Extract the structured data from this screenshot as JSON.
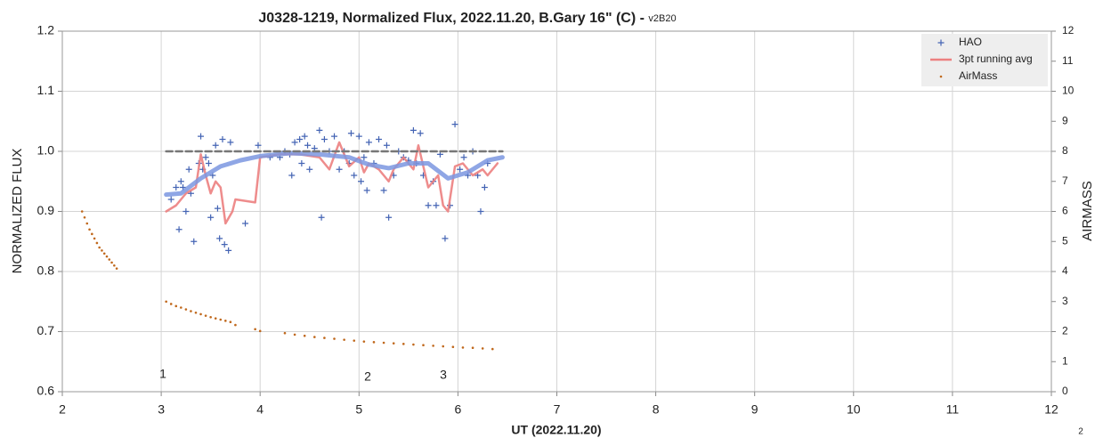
{
  "chart_data": {
    "type": "scatter",
    "title": "J0328-1219, Normalized Flux, 2022.11.20, B.Gary 16\" (C) - ",
    "subtitle": "v2B20",
    "x_label": "UT (2022.11.20)",
    "y_label": "NORMALIZED FLUX",
    "y2_label": "AIRMASS",
    "xlim": [
      2,
      12
    ],
    "xticks": [
      2,
      3,
      4,
      5,
      6,
      7,
      8,
      9,
      10,
      11,
      12
    ],
    "ylim": [
      0.6,
      1.2
    ],
    "yticks": [
      0.6,
      0.7,
      0.8,
      0.9,
      {
        "value": 1,
        "label": "1.0"
      },
      1.1,
      1.2
    ],
    "y2lim": [
      0,
      12
    ],
    "y2ticks": [
      0,
      1,
      2,
      3,
      4,
      5,
      6,
      7,
      8,
      9,
      10,
      11,
      12
    ],
    "grid": true,
    "legend": "upper right",
    "annotations": [
      "1",
      "2",
      "3",
      "2"
    ],
    "series": [
      {
        "name": "HAO",
        "color": "#4464b4",
        "style": "plus",
        "x": [
          3.1,
          3.15,
          3.18,
          3.2,
          3.22,
          3.25,
          3.28,
          3.3,
          3.33,
          3.38,
          3.4,
          3.42,
          3.45,
          3.48,
          3.5,
          3.52,
          3.55,
          3.57,
          3.59,
          3.62,
          3.64,
          3.68,
          3.7,
          3.85,
          3.98,
          4.1,
          4.2,
          4.25,
          4.3,
          4.32,
          4.35,
          4.4,
          4.42,
          4.45,
          4.48,
          4.5,
          4.55,
          4.6,
          4.62,
          4.65,
          4.7,
          4.75,
          4.8,
          4.85,
          4.9,
          4.92,
          4.95,
          5.0,
          5.02,
          5.05,
          5.08,
          5.1,
          5.15,
          5.2,
          5.25,
          5.28,
          5.3,
          5.35,
          5.4,
          5.45,
          5.5,
          5.55,
          5.58,
          5.62,
          5.65,
          5.7,
          5.75,
          5.78,
          5.82,
          5.87,
          5.92,
          5.97,
          6.02,
          6.06,
          6.1,
          6.15,
          6.2,
          6.23,
          6.27,
          6.3
        ],
        "values": [
          0.92,
          0.94,
          0.87,
          0.95,
          0.94,
          0.9,
          0.97,
          0.93,
          0.85,
          0.98,
          1.025,
          0.97,
          0.99,
          0.98,
          0.89,
          0.96,
          1.01,
          0.905,
          0.855,
          1.02,
          0.845,
          0.835,
          1.015,
          0.88,
          1.01,
          0.99,
          0.99,
          1.0,
          0.995,
          0.96,
          1.015,
          1.02,
          0.98,
          1.025,
          1.01,
          0.97,
          1.005,
          1.035,
          0.89,
          1.02,
          1.0,
          1.025,
          0.97,
          1.0,
          0.98,
          1.03,
          0.96,
          1.025,
          0.95,
          0.99,
          0.935,
          1.015,
          0.98,
          1.02,
          0.935,
          1.01,
          0.89,
          0.96,
          1.0,
          0.99,
          0.985,
          1.035,
          0.98,
          1.03,
          0.96,
          0.91,
          0.95,
          0.91,
          0.995,
          0.855,
          0.91,
          1.045,
          0.97,
          0.99,
          0.96,
          1.0,
          0.96,
          0.9,
          0.94,
          0.98
        ]
      },
      {
        "name": "3pt running avg",
        "color": "#ec8080",
        "style": "line",
        "x": [
          3.05,
          3.15,
          3.25,
          3.35,
          3.4,
          3.45,
          3.5,
          3.55,
          3.6,
          3.65,
          3.72,
          3.75,
          3.95,
          4.0,
          4.2,
          4.4,
          4.6,
          4.7,
          4.8,
          4.9,
          5.0,
          5.05,
          5.1,
          5.2,
          5.3,
          5.35,
          5.45,
          5.55,
          5.6,
          5.7,
          5.8,
          5.85,
          5.9,
          5.97,
          6.05,
          6.15,
          6.25,
          6.3,
          6.4
        ],
        "values": [
          0.9,
          0.91,
          0.93,
          0.94,
          0.995,
          0.96,
          0.93,
          0.95,
          0.94,
          0.88,
          0.9,
          0.92,
          0.915,
          0.99,
          0.995,
          0.995,
          0.99,
          0.97,
          1.015,
          0.975,
          0.99,
          0.965,
          0.98,
          0.97,
          0.95,
          0.97,
          0.99,
          0.97,
          1.01,
          0.94,
          0.96,
          0.91,
          0.9,
          0.975,
          0.98,
          0.96,
          0.97,
          0.96,
          0.98
        ]
      },
      {
        "color": "#7b96e0",
        "style": "fit",
        "x": [
          3.05,
          3.2,
          3.4,
          3.6,
          3.8,
          4.0,
          4.3,
          4.6,
          4.9,
          5.1,
          5.3,
          5.5,
          5.7,
          5.9,
          6.1,
          6.3,
          6.45
        ],
        "values": [
          0.928,
          0.93,
          0.955,
          0.975,
          0.985,
          0.992,
          0.997,
          0.995,
          0.99,
          0.978,
          0.972,
          0.98,
          0.98,
          0.955,
          0.965,
          0.985,
          0.99
        ]
      },
      {
        "color": "#777777",
        "style": "dashed",
        "x": [
          3.05,
          6.45
        ],
        "values": [
          1,
          1
        ]
      },
      {
        "name": "AirMass",
        "color": "#c0681c",
        "style": "dot",
        "axis": "y2",
        "x": [
          2.2,
          2.225,
          2.25,
          2.275,
          2.3,
          2.325,
          2.35,
          2.375,
          2.4,
          2.425,
          2.45,
          2.475,
          2.5,
          2.525,
          2.55,
          3.05,
          3.1,
          3.15,
          3.2,
          3.25,
          3.3,
          3.35,
          3.4,
          3.45,
          3.5,
          3.55,
          3.6,
          3.65,
          3.7,
          3.75,
          3.95,
          4.0,
          4.25,
          4.35,
          4.45,
          4.55,
          4.65,
          4.75,
          4.85,
          4.95,
          5.05,
          5.15,
          5.25,
          5.35,
          5.45,
          5.55,
          5.65,
          5.75,
          5.85,
          5.95,
          6.05,
          6.15,
          6.25,
          6.35
        ],
        "values": [
          6.0,
          5.8,
          5.6,
          5.4,
          5.25,
          5.1,
          4.95,
          4.8,
          4.7,
          4.6,
          4.5,
          4.4,
          4.3,
          4.2,
          4.1,
          3.0,
          2.92,
          2.85,
          2.8,
          2.74,
          2.68,
          2.63,
          2.58,
          2.53,
          2.48,
          2.44,
          2.4,
          2.36,
          2.32,
          2.22,
          2.08,
          2.02,
          1.95,
          1.9,
          1.86,
          1.82,
          1.79,
          1.76,
          1.73,
          1.7,
          1.67,
          1.65,
          1.63,
          1.61,
          1.59,
          1.57,
          1.55,
          1.53,
          1.51,
          1.49,
          1.47,
          1.46,
          1.44,
          1.42
        ]
      }
    ]
  }
}
